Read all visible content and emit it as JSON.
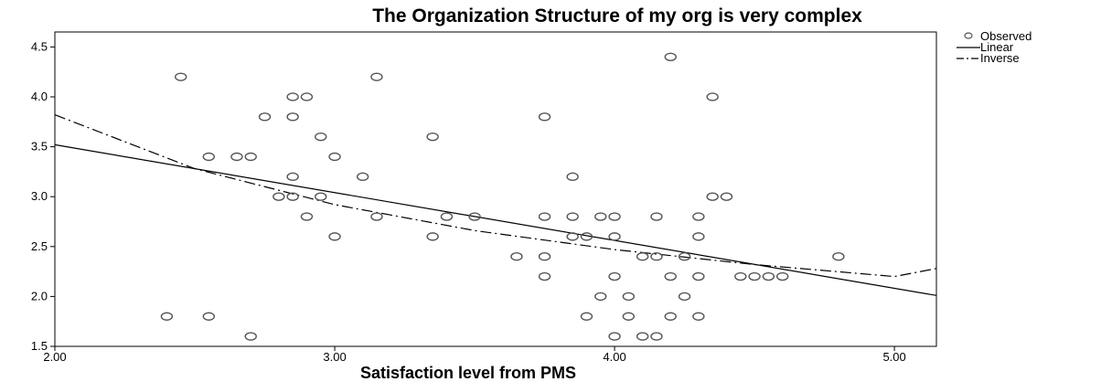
{
  "chart_data": {
    "type": "scatter",
    "title": "The Organization Structure of my org is very complex",
    "xlabel": "Satisfaction level from PMS",
    "ylabel": "",
    "xlim": [
      2.0,
      5.15
    ],
    "ylim": [
      1.5,
      4.65
    ],
    "x_ticks": [
      2.0,
      3.0,
      4.0,
      5.0
    ],
    "x_tick_labels": [
      "2.00",
      "3.00",
      "4.00",
      "5.00"
    ],
    "y_ticks": [
      1.5,
      2.0,
      2.5,
      3.0,
      3.5,
      4.0,
      4.5
    ],
    "y_tick_labels": [
      "1.5",
      "2.0",
      "2.5",
      "3.0",
      "3.5",
      "4.0",
      "4.5"
    ],
    "grid": false,
    "legend": {
      "position": "top-right",
      "entries": [
        "Observed",
        "Linear",
        "Inverse"
      ]
    },
    "series": [
      {
        "name": "Observed",
        "kind": "points",
        "color": "#555555",
        "points": [
          [
            2.45,
            4.2
          ],
          [
            2.55,
            3.4
          ],
          [
            2.65,
            3.4
          ],
          [
            2.7,
            3.4
          ],
          [
            2.75,
            3.8
          ],
          [
            2.85,
            4.0
          ],
          [
            2.9,
            4.0
          ],
          [
            2.85,
            3.8
          ],
          [
            2.85,
            3.2
          ],
          [
            2.8,
            3.0
          ],
          [
            2.85,
            3.0
          ],
          [
            2.95,
            3.0
          ],
          [
            2.9,
            2.8
          ],
          [
            2.95,
            3.6
          ],
          [
            3.0,
            3.4
          ],
          [
            3.0,
            2.6
          ],
          [
            3.1,
            3.2
          ],
          [
            3.15,
            4.2
          ],
          [
            3.15,
            2.8
          ],
          [
            3.35,
            3.6
          ],
          [
            3.35,
            2.6
          ],
          [
            3.4,
            2.8
          ],
          [
            3.5,
            2.8
          ],
          [
            3.65,
            2.4
          ],
          [
            3.75,
            3.8
          ],
          [
            3.75,
            2.8
          ],
          [
            3.75,
            2.4
          ],
          [
            3.75,
            2.2
          ],
          [
            3.85,
            3.2
          ],
          [
            3.85,
            2.8
          ],
          [
            3.85,
            2.6
          ],
          [
            3.9,
            2.6
          ],
          [
            3.95,
            2.8
          ],
          [
            4.0,
            2.8
          ],
          [
            4.0,
            2.6
          ],
          [
            4.0,
            2.2
          ],
          [
            3.95,
            2.0
          ],
          [
            4.05,
            2.0
          ],
          [
            3.9,
            1.8
          ],
          [
            4.05,
            1.8
          ],
          [
            4.0,
            1.6
          ],
          [
            4.1,
            1.6
          ],
          [
            4.15,
            1.6
          ],
          [
            4.1,
            2.4
          ],
          [
            4.15,
            2.4
          ],
          [
            4.15,
            2.8
          ],
          [
            4.2,
            2.2
          ],
          [
            4.2,
            1.8
          ],
          [
            4.25,
            2.4
          ],
          [
            4.25,
            2.0
          ],
          [
            4.3,
            2.8
          ],
          [
            4.3,
            2.6
          ],
          [
            4.3,
            2.2
          ],
          [
            4.3,
            1.8
          ],
          [
            4.35,
            3.0
          ],
          [
            4.4,
            3.0
          ],
          [
            4.35,
            4.0
          ],
          [
            4.2,
            4.4
          ],
          [
            4.45,
            2.2
          ],
          [
            4.5,
            2.2
          ],
          [
            4.55,
            2.2
          ],
          [
            4.6,
            2.2
          ],
          [
            4.8,
            2.4
          ],
          [
            2.4,
            1.8
          ],
          [
            2.55,
            1.8
          ],
          [
            2.7,
            1.6
          ]
        ]
      },
      {
        "name": "Linear",
        "kind": "line",
        "style": "solid",
        "color": "#000000",
        "x": [
          2.0,
          5.15
        ],
        "y": [
          3.52,
          2.01
        ]
      },
      {
        "name": "Inverse",
        "kind": "curve",
        "style": "dash-dot",
        "color": "#000000",
        "x": [
          2.0,
          2.5,
          3.0,
          3.5,
          4.0,
          4.5,
          5.0,
          5.15
        ],
        "y": [
          3.82,
          3.28,
          2.92,
          2.66,
          2.47,
          2.32,
          2.2,
          2.28
        ]
      }
    ]
  }
}
